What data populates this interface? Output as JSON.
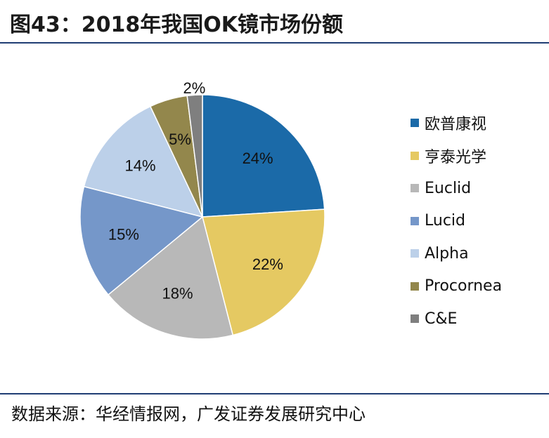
{
  "figure": {
    "title": "图43：2018年我国OK镜市场份额",
    "source": "数据来源：华经情报网，广发证券发展研究中心"
  },
  "chart_data": {
    "type": "pie",
    "title": "",
    "legend_position": "right",
    "slices": [
      {
        "name": "欧普康视",
        "value": 24,
        "label": "24%",
        "color": "#1b6aa8"
      },
      {
        "name": "亨泰光学",
        "value": 22,
        "label": "22%",
        "color": "#e5c962"
      },
      {
        "name": "Euclid",
        "value": 18,
        "label": "18%",
        "color": "#b8b8b8"
      },
      {
        "name": "Lucid",
        "value": 15,
        "label": "15%",
        "color": "#7597c9"
      },
      {
        "name": "Alpha",
        "value": 14,
        "label": "14%",
        "color": "#bcd0e9"
      },
      {
        "name": "Procornea",
        "value": 5,
        "label": "5%",
        "color": "#93874c"
      },
      {
        "name": "C&E",
        "value": 2,
        "label": "2%",
        "color": "#7f7f7f"
      }
    ]
  }
}
